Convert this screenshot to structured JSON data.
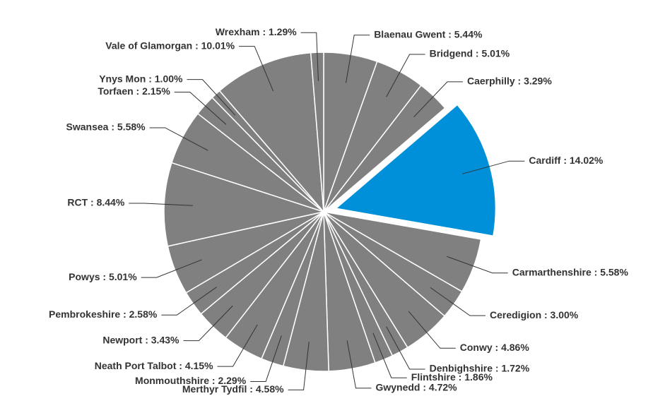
{
  "chart_data": {
    "type": "pie",
    "labels": [
      "Blaenau Gwent : 5.44%",
      "Bridgend : 5.01%",
      "Caerphilly : 3.29%",
      "Cardiff : 14.02%",
      "Carmarthenshire : 5.58%",
      "Ceredigion : 3.00%",
      "Conwy : 4.86%",
      "Denbighshire : 1.72%",
      "Flintshire : 1.86%",
      "Gwynedd : 4.72%",
      "Merthyr Tydfil : 4.58%",
      "Monmouthshire : 2.29%",
      "Neath Port Talbot : 4.15%",
      "Newport : 3.43%",
      "Pembrokeshire : 2.58%",
      "Powys : 5.01%",
      "RCT : 8.44%",
      "Swansea : 5.58%",
      "Torfaen : 2.15%",
      "Ynys Mon : 1.00%",
      "Vale of Glamorgan : 10.01%",
      "Wrexham : 1.29%"
    ],
    "values": [
      5.44,
      5.01,
      3.29,
      14.02,
      5.58,
      3.0,
      4.86,
      1.72,
      1.86,
      4.72,
      4.58,
      2.29,
      4.15,
      3.43,
      2.58,
      5.01,
      8.44,
      5.58,
      2.15,
      1.0,
      10.01,
      1.29
    ],
    "colors": [
      "#808080",
      "#808080",
      "#808080",
      "#0090d9",
      "#808080",
      "#808080",
      "#808080",
      "#808080",
      "#808080",
      "#808080",
      "#808080",
      "#808080",
      "#808080",
      "#808080",
      "#808080",
      "#808080",
      "#808080",
      "#808080",
      "#808080",
      "#808080",
      "#808080",
      "#808080"
    ],
    "explode": [
      false,
      false,
      false,
      true,
      false,
      false,
      false,
      false,
      false,
      false,
      false,
      false,
      false,
      false,
      false,
      false,
      false,
      false,
      false,
      false,
      false,
      false
    ]
  }
}
